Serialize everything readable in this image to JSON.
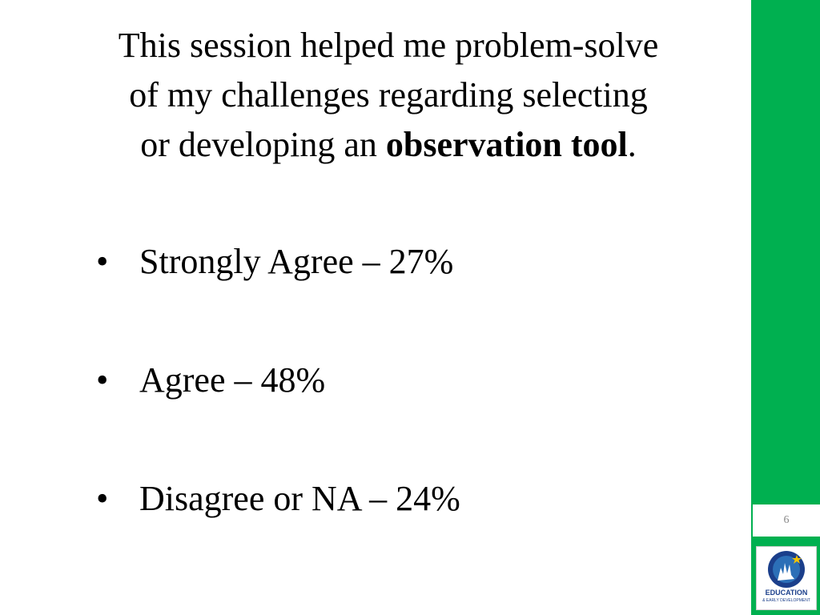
{
  "title": {
    "line1": "This session helped me problem-solve",
    "line2": "of my challenges regarding selecting",
    "line3_prefix": "or developing an ",
    "line3_bold": "observation tool",
    "line3_suffix": "."
  },
  "bullets": [
    {
      "text": "Strongly Agree – 27%"
    },
    {
      "text": "Agree – 48%"
    },
    {
      "text": "Disagree or NA – 24%"
    }
  ],
  "bullet_glyph": "•",
  "slide_number": "6",
  "logo": {
    "name": "education-early-development-logo",
    "text_main": "EDUCATION",
    "text_sub": "& EARLY DEVELOPMENT"
  },
  "colors": {
    "sidebar": "#00b050",
    "logo_blue": "#1b3f8b"
  }
}
